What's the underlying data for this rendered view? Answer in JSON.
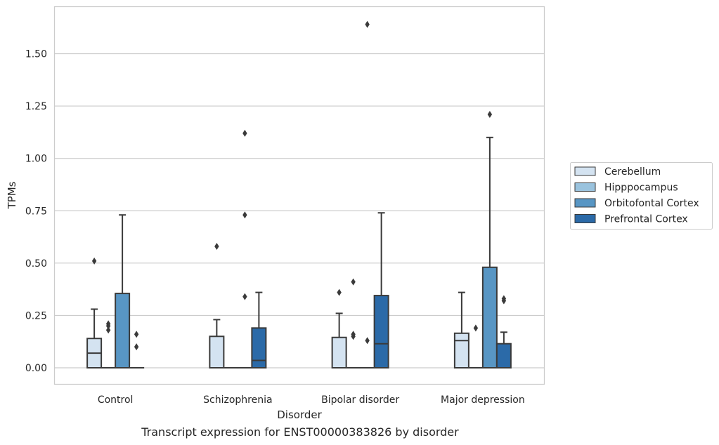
{
  "caption": "Transcript expression for ENST00000383826 by disorder",
  "chart_data": {
    "type": "box",
    "xlabel": "Disorder",
    "ylabel": "TPMs",
    "ylim": [
      -0.08,
      1.72
    ],
    "yticks": [
      "0.00",
      "0.25",
      "0.50",
      "0.75",
      "1.00",
      "1.25",
      "1.50"
    ],
    "grid": "horizontal",
    "legend_position": "right",
    "categories": [
      "Control",
      "Schizophrenia",
      "Bipolar disorder",
      "Major depression"
    ],
    "series": [
      {
        "name": "Cerebellum",
        "color": "#d4e3f1",
        "boxes": [
          {
            "q1": 0.0,
            "median": 0.07,
            "q3": 0.14,
            "whislo": 0.0,
            "whishi": 0.28,
            "fliers": [
              0.51
            ]
          },
          {
            "q1": 0.0,
            "median": 0.0,
            "q3": 0.15,
            "whislo": 0.0,
            "whishi": 0.23,
            "fliers": [
              0.58
            ]
          },
          {
            "q1": 0.0,
            "median": 0.0,
            "q3": 0.145,
            "whislo": 0.0,
            "whishi": 0.26,
            "fliers": [
              0.36
            ]
          },
          {
            "q1": 0.0,
            "median": 0.13,
            "q3": 0.165,
            "whislo": 0.0,
            "whishi": 0.36,
            "fliers": []
          }
        ]
      },
      {
        "name": "Hipppocampus",
        "color": "#9ac3de",
        "boxes": [
          {
            "q1": 0.0,
            "median": 0.0,
            "q3": 0.0,
            "whislo": 0.0,
            "whishi": 0.0,
            "fliers": [
              0.18,
              0.21,
              0.2
            ]
          },
          {
            "q1": 0.0,
            "median": 0.0,
            "q3": 0.0,
            "whislo": 0.0,
            "whishi": 0.0,
            "fliers": []
          },
          {
            "q1": 0.0,
            "median": 0.0,
            "q3": 0.0,
            "whislo": 0.0,
            "whishi": 0.0,
            "fliers": [
              0.41,
              0.16,
              0.15
            ]
          },
          {
            "q1": 0.0,
            "median": 0.0,
            "q3": 0.0,
            "whislo": 0.0,
            "whishi": 0.0,
            "fliers": [
              0.19
            ]
          }
        ]
      },
      {
        "name": "Orbitofontal Cortex",
        "color": "#5896c4",
        "boxes": [
          {
            "q1": 0.0,
            "median": 0.0,
            "q3": 0.355,
            "whislo": 0.0,
            "whishi": 0.73,
            "fliers": []
          },
          {
            "q1": 0.0,
            "median": 0.0,
            "q3": 0.0,
            "whislo": 0.0,
            "whishi": 0.0,
            "fliers": [
              1.12,
              0.73,
              0.34
            ]
          },
          {
            "q1": 0.0,
            "median": 0.0,
            "q3": 0.0,
            "whislo": 0.0,
            "whishi": 0.0,
            "fliers": [
              0.13,
              1.64
            ]
          },
          {
            "q1": 0.0,
            "median": 0.0,
            "q3": 0.48,
            "whislo": 0.0,
            "whishi": 1.1,
            "fliers": [
              1.21
            ]
          }
        ]
      },
      {
        "name": "Prefrontal Cortex",
        "color": "#2b6aa8",
        "boxes": [
          {
            "q1": 0.0,
            "median": 0.0,
            "q3": 0.0,
            "whislo": 0.0,
            "whishi": 0.0,
            "fliers": [
              0.16,
              0.1
            ]
          },
          {
            "q1": 0.0,
            "median": 0.035,
            "q3": 0.19,
            "whislo": 0.0,
            "whishi": 0.36,
            "fliers": []
          },
          {
            "q1": 0.0,
            "median": 0.115,
            "q3": 0.345,
            "whislo": 0.0,
            "whishi": 0.74,
            "fliers": []
          },
          {
            "q1": 0.0,
            "median": 0.0,
            "q3": 0.115,
            "whislo": 0.0,
            "whishi": 0.17,
            "fliers": [
              0.33,
              0.32
            ]
          }
        ]
      }
    ]
  }
}
